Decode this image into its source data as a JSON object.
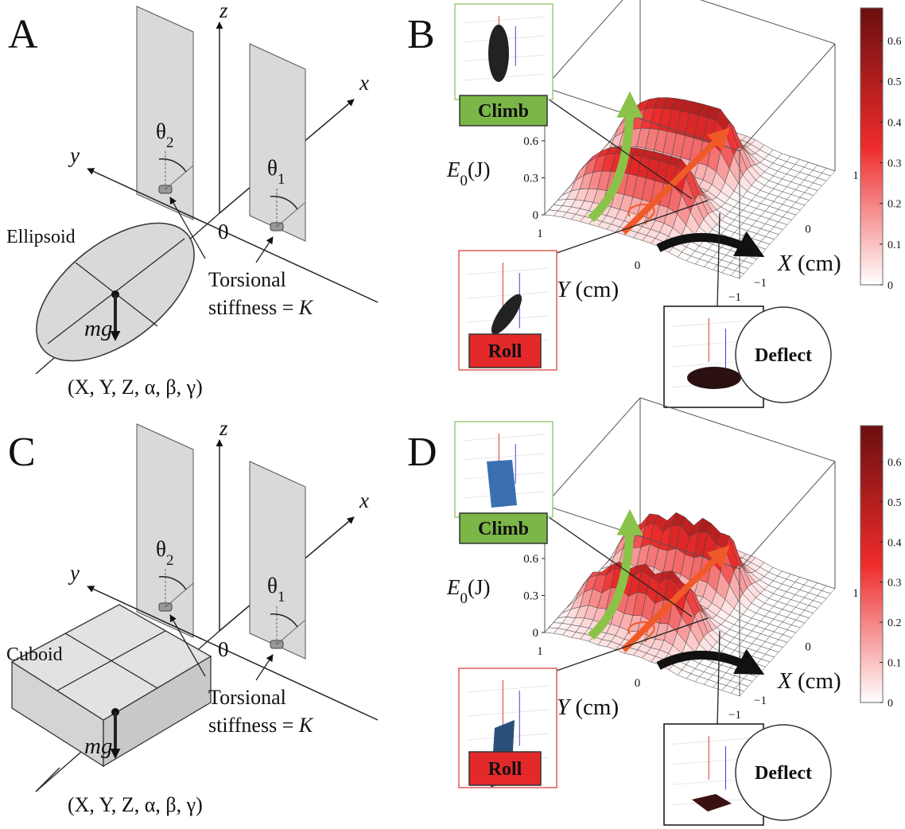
{
  "diagrams": [
    {
      "label": "A",
      "axis_z": "z",
      "axis_x": "x",
      "axis_y": "y",
      "origin": "0",
      "theta_2": {
        "symbol": "θ",
        "sub": "2"
      },
      "theta_1": {
        "symbol": "θ",
        "sub": "1"
      },
      "body": "Ellipsoid",
      "weight": "mg",
      "spring_1": "Torsional",
      "spring_2": "stiffness = ",
      "spring_var": "K",
      "coords": "(X, Y, Z, α, β, γ)"
    },
    {
      "label": "C",
      "axis_z": "z",
      "axis_x": "x",
      "axis_y": "y",
      "origin": "0",
      "theta_2": {
        "symbol": "θ",
        "sub": "2"
      },
      "theta_1": {
        "symbol": "θ",
        "sub": "1"
      },
      "body": "Cuboid",
      "weight": "mg",
      "spring_1": "Torsional",
      "spring_2": "stiffness = ",
      "spring_var": "K",
      "coords": "(X, Y, Z, α, β, γ)"
    }
  ],
  "plots": [
    {
      "label": "B",
      "energy_var": "E",
      "energy_sub": "0",
      "energy_unit": "(J)",
      "zticks": [
        0.6,
        0.3,
        0
      ],
      "y_ticks": [
        "1",
        "0",
        "−1"
      ],
      "x_ticks": [
        "−1",
        "0",
        "1"
      ],
      "x_var": "X",
      "y_var": "Y",
      "unit": "(cm)",
      "colorbar_lim": [
        0,
        0.68
      ],
      "colorbar_ticks": [
        0.6,
        0.5,
        0.4,
        0.3,
        0.2,
        0.1,
        0
      ],
      "modes": [
        "Climb",
        "Roll",
        "Deflect"
      ]
    },
    {
      "label": "D",
      "energy_var": "E",
      "energy_sub": "0",
      "energy_unit": "(J)",
      "zticks": [
        0.6,
        0.3,
        0
      ],
      "y_ticks": [
        "1",
        "0",
        "−1"
      ],
      "x_ticks": [
        "−1",
        "0",
        "1"
      ],
      "x_var": "X",
      "y_var": "Y",
      "unit": "(cm)",
      "colorbar_lim": [
        0,
        0.69
      ],
      "colorbar_ticks": [
        0.6,
        0.5,
        0.4,
        0.3,
        0.2,
        0.1,
        0
      ],
      "modes": [
        "Climb",
        "Roll",
        "Deflect"
      ]
    }
  ]
}
